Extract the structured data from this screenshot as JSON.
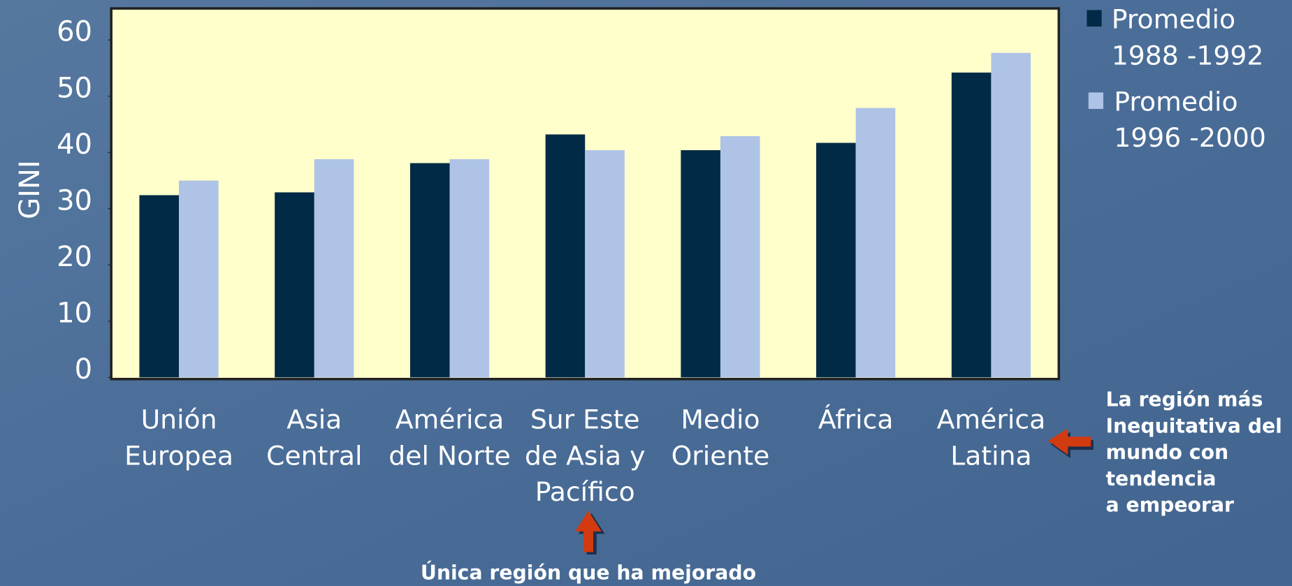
{
  "chart_data": {
    "type": "bar",
    "y_label": "GINI",
    "categories": [
      "Unión\nEuropea",
      "Asia\nCentral",
      "América\ndel Norte",
      "Sur Este\nde Asia y\nPacífico",
      "Medio\nOriente",
      "África",
      "América\nLatina"
    ],
    "series": [
      {
        "name": "Promedio\n1988 -1992",
        "color": "#002a45",
        "values": [
          32.4,
          32.9,
          38.1,
          43.2,
          40.4,
          41.7,
          54.2
        ]
      },
      {
        "name": "Promedio\n1996 -2000",
        "color": "#aec3e6",
        "values": [
          35.0,
          38.8,
          38.8,
          40.4,
          42.9,
          47.9,
          57.7
        ]
      }
    ],
    "ylim": [
      0,
      65.6
    ],
    "yticks": [
      0,
      10,
      20,
      30,
      40,
      50,
      60
    ],
    "annotations": [
      "La región más\nInequitativa del\nmundo con\ntendencia\na empeorar",
      "Única región que ha mejorado"
    ]
  }
}
